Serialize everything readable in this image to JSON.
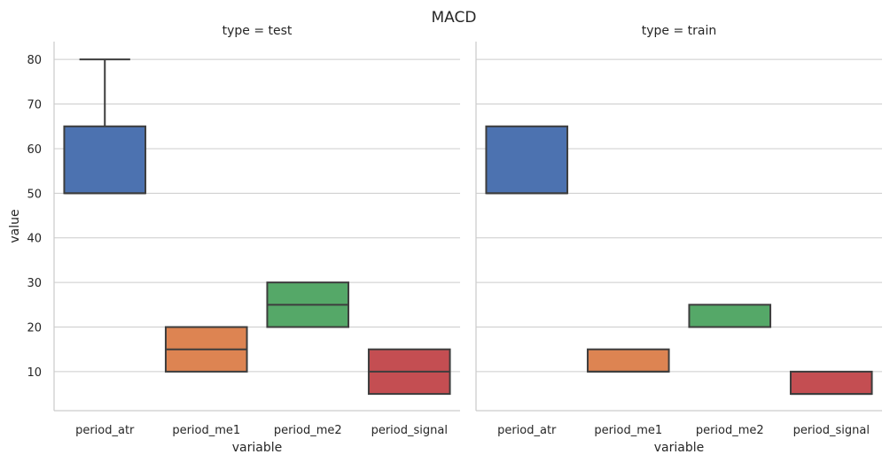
{
  "chart_data": {
    "type": "box",
    "title": "MACD",
    "xlabel": "variable",
    "ylabel": "value",
    "ylim": [
      1.25,
      84
    ],
    "yticks": [
      10,
      20,
      30,
      40,
      50,
      60,
      70,
      80
    ],
    "categories": [
      "period_atr",
      "period_me1",
      "period_me2",
      "period_signal"
    ],
    "category_colors": [
      "#4c72b0",
      "#dd8452",
      "#55a868",
      "#c44e52"
    ],
    "panels": [
      {
        "title": "type = test",
        "boxes": [
          {
            "category": "period_atr",
            "q1": 50,
            "median": 50,
            "q3": 65,
            "whisker_low": 50,
            "whisker_high": 80
          },
          {
            "category": "period_me1",
            "q1": 10,
            "median": 15,
            "q3": 20,
            "whisker_low": 10,
            "whisker_high": 20
          },
          {
            "category": "period_me2",
            "q1": 20,
            "median": 25,
            "q3": 30,
            "whisker_low": 20,
            "whisker_high": 30
          },
          {
            "category": "period_signal",
            "q1": 5,
            "median": 10,
            "q3": 15,
            "whisker_low": 5,
            "whisker_high": 15
          }
        ]
      },
      {
        "title": "type = train",
        "boxes": [
          {
            "category": "period_atr",
            "q1": 50,
            "median": 50,
            "q3": 65,
            "whisker_low": 50,
            "whisker_high": 65
          },
          {
            "category": "period_me1",
            "q1": 10,
            "median": 10,
            "q3": 15,
            "whisker_low": 10,
            "whisker_high": 15
          },
          {
            "category": "period_me2",
            "q1": 20,
            "median": 20,
            "q3": 25,
            "whisker_low": 20,
            "whisker_high": 25
          },
          {
            "category": "period_signal",
            "q1": 5,
            "median": 5,
            "q3": 10,
            "whisker_low": 5,
            "whisker_high": 10
          }
        ]
      }
    ],
    "grid": "y",
    "legend": "none",
    "sharey": true
  }
}
